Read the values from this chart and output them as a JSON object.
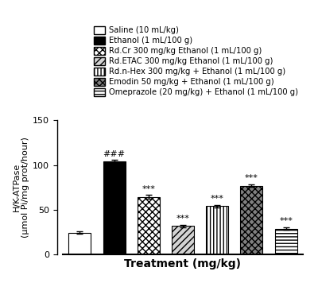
{
  "values": [
    24.5,
    104.0,
    64.5,
    32.0,
    54.0,
    77.0,
    29.0
  ],
  "errors": [
    1.5,
    1.5,
    2.0,
    1.5,
    1.5,
    1.5,
    1.5
  ],
  "ylabel": "H/K-ATPase\n(μmol Pi/mg prot/hour)",
  "xlabel": "Treatment (mg/kg)",
  "ylim": [
    0,
    150
  ],
  "yticks": [
    0,
    50,
    100,
    150
  ],
  "legend_labels": [
    "Saline (10 mL/kg)",
    "Ethanol (1 mL/100 g)",
    "Rd.Cr 300 mg/kg Ethanol (1 mL/100 g)",
    "Rd.ETAC 300 mg/kg Ethanol (1 mL/100 g)",
    "Rd.n-Hex 300 mg/kg + Ethanol (1 mL/100 g)",
    "Emodin 50 mg/kg + Ethanol (1 mL/100 g)",
    "Omeprazole (20 mg/kg) + Ethanol (1 mL/100 g)"
  ],
  "bar_annotations": [
    "",
    "###",
    "***",
    "***",
    "***",
    "***",
    "***"
  ],
  "background_color": "#ffffff",
  "bar_width": 0.65,
  "legend_fontsize": 7.2,
  "ylabel_fontsize": 8,
  "xlabel_fontsize": 10,
  "annot_fontsize": 8
}
